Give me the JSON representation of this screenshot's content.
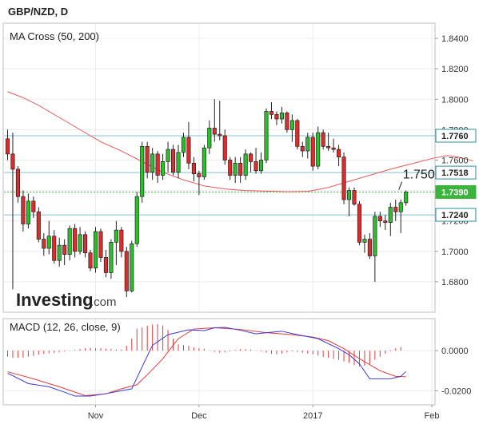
{
  "header": {
    "title": "GBP/NZD, D"
  },
  "price_panel": {
    "indicator_label": "MA Cross (50, 200)",
    "watermark_text": "Investing",
    "watermark_suffix": ".com"
  },
  "macd_panel": {
    "indicator_label": "MACD (12, 26, close, 9)"
  },
  "colors": {
    "up": "#2bc02b",
    "down": "#e12b2b",
    "ma_slow": "#e85a5a",
    "macd_line": "#3a3ad8",
    "signal_line": "#e23b3b",
    "hist": "#e23b3b",
    "level_line": "#7cc4d2",
    "current_line": "#3cb33c",
    "current_tag": "#3cb33c",
    "level_tag": "#2a8ea3"
  },
  "chart_data": [
    {
      "type": "candlestick",
      "title": "GBP/NZD, D",
      "x": {
        "ticks": [
          "Nov",
          "Dec",
          "2017",
          "Feb"
        ],
        "first_candle_date": "2016-10-07",
        "last_candle_date": "2017-01-20"
      },
      "ylim": [
        1.66,
        1.85
      ],
      "y_ticks": [
        "1.8400",
        "1.8200",
        "1.8000",
        "1.7800",
        "1.7600",
        "1.7400",
        "1.7200",
        "1.7000",
        "1.6800"
      ],
      "grid": true,
      "levels": [
        {
          "label": "1.7760",
          "value": 1.776,
          "kind": "resistance"
        },
        {
          "label": "1.7518",
          "value": 1.7518,
          "kind": "resistance"
        },
        {
          "label": "1.7390",
          "value": 1.739,
          "kind": "current"
        },
        {
          "label": "1.7240",
          "value": 1.724,
          "kind": "support"
        }
      ],
      "annotation": {
        "text": "1.7500",
        "value": 1.75
      },
      "series": [
        {
          "name": "MA Cross (50, 200)",
          "type": "line",
          "points": [
            [
              0,
              1.805
            ],
            [
              3,
              1.801
            ],
            [
              6,
              1.796
            ],
            [
              10,
              1.788
            ],
            [
              14,
              1.78
            ],
            [
              18,
              1.772
            ],
            [
              22,
              1.766
            ],
            [
              26,
              1.759
            ],
            [
              30,
              1.752
            ],
            [
              34,
              1.747
            ],
            [
              38,
              1.743
            ],
            [
              42,
              1.741
            ],
            [
              46,
              1.74
            ],
            [
              50,
              1.7396
            ],
            [
              54,
              1.7392
            ],
            [
              58,
              1.7394
            ],
            [
              62,
              1.742
            ],
            [
              66,
              1.746
            ],
            [
              70,
              1.75
            ],
            [
              74,
              1.754
            ],
            [
              78,
              1.7575
            ],
            [
              82,
              1.761
            ],
            [
              85,
              1.763
            ],
            [
              87,
              1.762
            ],
            [
              90,
              1.7595
            ]
          ]
        }
      ],
      "candles": [
        [
          1.774,
          1.78,
          1.76,
          1.764
        ],
        [
          1.764,
          1.778,
          1.675,
          1.754
        ],
        [
          1.754,
          1.756,
          1.732,
          1.736
        ],
        [
          1.736,
          1.74,
          1.713,
          1.718
        ],
        [
          1.718,
          1.738,
          1.715,
          1.733
        ],
        [
          1.733,
          1.736,
          1.722,
          1.726
        ],
        [
          1.726,
          1.729,
          1.706,
          1.708
        ],
        [
          1.708,
          1.712,
          1.697,
          1.702
        ],
        [
          1.702,
          1.72,
          1.698,
          1.71
        ],
        [
          1.71,
          1.714,
          1.692,
          1.694
        ],
        [
          1.694,
          1.709,
          1.69,
          1.704
        ],
        [
          1.704,
          1.708,
          1.691,
          1.698
        ],
        [
          1.698,
          1.717,
          1.694,
          1.715
        ],
        [
          1.715,
          1.718,
          1.696,
          1.7
        ],
        [
          1.7,
          1.716,
          1.698,
          1.711
        ],
        [
          1.711,
          1.713,
          1.696,
          1.699
        ],
        [
          1.699,
          1.701,
          1.687,
          1.689
        ],
        [
          1.689,
          1.716,
          1.686,
          1.713
        ],
        [
          1.713,
          1.715,
          1.693,
          1.696
        ],
        [
          1.696,
          1.701,
          1.683,
          1.686
        ],
        [
          1.686,
          1.708,
          1.682,
          1.706
        ],
        [
          1.706,
          1.72,
          1.691,
          1.714
        ],
        [
          1.714,
          1.716,
          1.696,
          1.7
        ],
        [
          1.7,
          1.703,
          1.67,
          1.674
        ],
        [
          1.674,
          1.707,
          1.673,
          1.705
        ],
        [
          1.705,
          1.739,
          1.703,
          1.736
        ],
        [
          1.736,
          1.772,
          1.732,
          1.769
        ],
        [
          1.769,
          1.772,
          1.748,
          1.752
        ],
        [
          1.752,
          1.768,
          1.747,
          1.764
        ],
        [
          1.764,
          1.766,
          1.745,
          1.75
        ],
        [
          1.75,
          1.764,
          1.747,
          1.759
        ],
        [
          1.759,
          1.772,
          1.752,
          1.767
        ],
        [
          1.767,
          1.77,
          1.75,
          1.752
        ],
        [
          1.752,
          1.77,
          1.748,
          1.765
        ],
        [
          1.765,
          1.778,
          1.762,
          1.775
        ],
        [
          1.775,
          1.785,
          1.754,
          1.758
        ],
        [
          1.758,
          1.762,
          1.746,
          1.751
        ],
        [
          1.751,
          1.753,
          1.737,
          1.749
        ],
        [
          1.749,
          1.77,
          1.747,
          1.768
        ],
        [
          1.768,
          1.786,
          1.764,
          1.781
        ],
        [
          1.781,
          1.8,
          1.772,
          1.777
        ],
        [
          1.777,
          1.799,
          1.773,
          1.776
        ],
        [
          1.776,
          1.78,
          1.757,
          1.76
        ],
        [
          1.76,
          1.762,
          1.747,
          1.75
        ],
        [
          1.75,
          1.762,
          1.745,
          1.758
        ],
        [
          1.758,
          1.762,
          1.745,
          1.75
        ],
        [
          1.75,
          1.767,
          1.747,
          1.764
        ],
        [
          1.764,
          1.765,
          1.752,
          1.759
        ],
        [
          1.759,
          1.768,
          1.751,
          1.753
        ],
        [
          1.753,
          1.765,
          1.751,
          1.76
        ],
        [
          1.76,
          1.794,
          1.758,
          1.792
        ],
        [
          1.792,
          1.798,
          1.787,
          1.79
        ],
        [
          1.79,
          1.792,
          1.783,
          1.787
        ],
        [
          1.787,
          1.795,
          1.784,
          1.791
        ],
        [
          1.791,
          1.792,
          1.778,
          1.78
        ],
        [
          1.78,
          1.79,
          1.772,
          1.786
        ],
        [
          1.786,
          1.787,
          1.767,
          1.769
        ],
        [
          1.769,
          1.772,
          1.762,
          1.766
        ],
        [
          1.766,
          1.778,
          1.761,
          1.775
        ],
        [
          1.775,
          1.778,
          1.753,
          1.756
        ],
        [
          1.756,
          1.782,
          1.754,
          1.778
        ],
        [
          1.778,
          1.78,
          1.767,
          1.769
        ],
        [
          1.769,
          1.778,
          1.766,
          1.768
        ],
        [
          1.768,
          1.774,
          1.765,
          1.767
        ],
        [
          1.767,
          1.77,
          1.756,
          1.762
        ],
        [
          1.762,
          1.765,
          1.731,
          1.734
        ],
        [
          1.734,
          1.742,
          1.723,
          1.74
        ],
        [
          1.74,
          1.742,
          1.73,
          1.731
        ],
        [
          1.731,
          1.733,
          1.704,
          1.706
        ],
        [
          1.706,
          1.711,
          1.699,
          1.708
        ],
        [
          1.708,
          1.712,
          1.695,
          1.697
        ],
        [
          1.697,
          1.726,
          1.68,
          1.723
        ],
        [
          1.723,
          1.726,
          1.716,
          1.72
        ],
        [
          1.72,
          1.724,
          1.714,
          1.719
        ],
        [
          1.719,
          1.732,
          1.71,
          1.729
        ],
        [
          1.729,
          1.734,
          1.72,
          1.726
        ],
        [
          1.726,
          1.734,
          1.712,
          1.732
        ],
        [
          1.732,
          1.74,
          1.73,
          1.739
        ]
      ]
    },
    {
      "type": "bar+line",
      "title": "MACD (12, 26, close, 9)",
      "ylim": [
        -0.027,
        0.016
      ],
      "y_ticks": [
        "0.0000",
        "-0.0200"
      ],
      "series": [
        {
          "name": "MACD",
          "type": "line",
          "points": [
            [
              0,
              -0.0112
            ],
            [
              4,
              -0.0164
            ],
            [
              8,
              -0.018
            ],
            [
              11,
              -0.0207
            ],
            [
              13,
              -0.0226
            ],
            [
              16,
              -0.0226
            ],
            [
              19,
              -0.0214
            ],
            [
              22,
              -0.02
            ],
            [
              24,
              -0.019
            ],
            [
              26,
              -0.008
            ],
            [
              28,
              0.0027
            ],
            [
              31,
              0.008
            ],
            [
              35,
              0.0104
            ],
            [
              38,
              0.01
            ],
            [
              40,
              0.0114
            ],
            [
              42,
              0.0116
            ],
            [
              45,
              0.0102
            ],
            [
              48,
              0.0084
            ],
            [
              50,
              0.009
            ],
            [
              53,
              0.0097
            ],
            [
              56,
              0.008
            ],
            [
              60,
              0.006
            ],
            [
              64,
              0.001
            ],
            [
              66,
              -0.002
            ],
            [
              68,
              -0.0066
            ],
            [
              70,
              -0.014
            ],
            [
              72,
              -0.014
            ],
            [
              74,
              -0.014
            ],
            [
              76,
              -0.0128
            ],
            [
              77,
              -0.0104
            ]
          ]
        },
        {
          "name": "Signal",
          "type": "line",
          "points": [
            [
              0,
              -0.0105
            ],
            [
              5,
              -0.014
            ],
            [
              10,
              -0.018
            ],
            [
              15,
              -0.0224
            ],
            [
              19,
              -0.0215
            ],
            [
              22,
              -0.019
            ],
            [
              25,
              -0.017
            ],
            [
              27,
              -0.012
            ],
            [
              30,
              -0.004
            ],
            [
              33,
              0.006
            ],
            [
              36,
              0.0108
            ],
            [
              40,
              0.0114
            ],
            [
              45,
              0.0106
            ],
            [
              50,
              0.009
            ],
            [
              55,
              0.008
            ],
            [
              59,
              0.0068
            ],
            [
              62,
              0.005
            ],
            [
              65,
              0.001
            ],
            [
              68,
              -0.004
            ],
            [
              72,
              -0.01
            ],
            [
              75,
              -0.0128
            ],
            [
              77,
              -0.013
            ]
          ]
        },
        {
          "name": "Histogram",
          "type": "bar",
          "values": [
            -0.003,
            -0.0036,
            -0.0036,
            -0.0034,
            -0.003,
            -0.0026,
            -0.002,
            -0.0016,
            -0.0014,
            -0.0012,
            -0.0008,
            -0.0004,
            -0.0002,
            0.0004,
            0.0008,
            0.0012,
            0.0014,
            0.0012,
            0.0012,
            0.001,
            0.0008,
            0.0006,
            0.0006,
            0.0024,
            0.006,
            0.011,
            0.0116,
            0.0124,
            0.013,
            0.0132,
            0.0126,
            0.0104,
            0.006,
            0.0032,
            0.0028,
            0.0024,
            0.0016,
            0.0012,
            0.001,
            0.0002,
            -0.0006,
            -0.001,
            -0.0008,
            -0.0004,
            0.0004,
            0.0008,
            0.0008,
            0.0006,
            0.0002,
            -0.0004,
            -0.001,
            -0.0016,
            -0.0018,
            -0.0014,
            -0.0008,
            -0.0004,
            -0.0006,
            -0.001,
            -0.0014,
            -0.0018,
            -0.0024,
            -0.003,
            -0.0036,
            -0.004,
            -0.0046,
            -0.0054,
            -0.006,
            -0.0072,
            -0.0078,
            -0.0076,
            -0.0066,
            -0.0046,
            -0.003,
            -0.0016,
            -0.0004,
            0.0012,
            0.0018
          ]
        }
      ]
    }
  ]
}
